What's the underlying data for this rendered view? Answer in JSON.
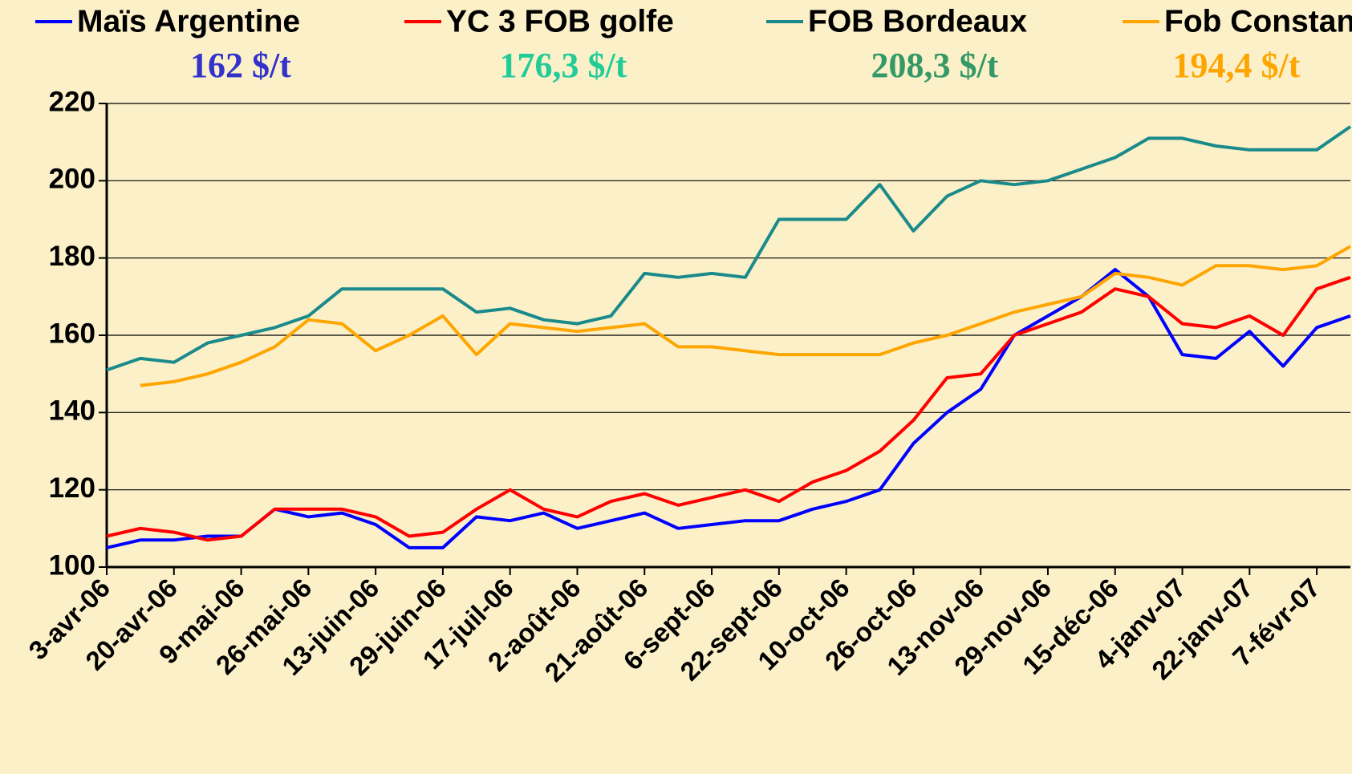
{
  "chart_data": {
    "type": "line",
    "categories": [
      "3-avr-06",
      null,
      "20-avr-06",
      null,
      "9-mai-06",
      null,
      "26-mai-06",
      null,
      "13-juin-06",
      null,
      "29-juin-06",
      null,
      "17-juil-06",
      null,
      "2-août-06",
      null,
      "21-août-06",
      null,
      "6-sept-06",
      null,
      "22-sept-06",
      null,
      "10-oct-06",
      null,
      "26-oct-06",
      null,
      "13-nov-06",
      null,
      "29-nov-06",
      null,
      "15-déc-06",
      null,
      "4-janv-07",
      null,
      "22-janv-07",
      null,
      "7-févr-07",
      null
    ],
    "series": [
      {
        "name": "Maïs Argentine",
        "color": "#0000ff",
        "values": [
          105,
          107,
          107,
          108,
          108,
          115,
          113,
          114,
          111,
          105,
          105,
          113,
          112,
          114,
          110,
          112,
          114,
          110,
          111,
          112,
          112,
          115,
          117,
          120,
          132,
          140,
          146,
          160,
          165,
          170,
          177,
          170,
          155,
          154,
          161,
          152,
          162,
          165
        ]
      },
      {
        "name": "YC 3 FOB golfe",
        "color": "#ff0000",
        "values": [
          108,
          110,
          109,
          107,
          108,
          115,
          115,
          115,
          113,
          108,
          109,
          115,
          120,
          115,
          113,
          117,
          119,
          116,
          118,
          120,
          117,
          122,
          125,
          130,
          138,
          149,
          150,
          160,
          163,
          166,
          172,
          170,
          163,
          162,
          165,
          160,
          172,
          175
        ]
      },
      {
        "name": "FOB Bordeaux",
        "color": "#1a8a8a",
        "values": [
          151,
          154,
          153,
          158,
          160,
          162,
          165,
          172,
          172,
          172,
          172,
          166,
          167,
          164,
          163,
          165,
          176,
          175,
          176,
          175,
          190,
          190,
          190,
          199,
          187,
          196,
          200,
          199,
          200,
          203,
          206,
          211,
          211,
          209,
          208,
          208,
          208,
          214
        ]
      },
      {
        "name": "Fob Constanza",
        "color": "#ffa500",
        "values": [
          null,
          147,
          148,
          150,
          153,
          157,
          164,
          163,
          156,
          160,
          165,
          155,
          163,
          162,
          161,
          162,
          163,
          157,
          157,
          156,
          155,
          155,
          155,
          155,
          158,
          160,
          163,
          166,
          168,
          170,
          176,
          175,
          173,
          178,
          178,
          177,
          178,
          183
        ]
      }
    ],
    "annotations": [
      {
        "text": "162 $/t",
        "color": "#3333cc"
      },
      {
        "text": "176,3 $/t",
        "color": "#22cc99"
      },
      {
        "text": "208,3 $/t",
        "color": "#339966"
      },
      {
        "text": "194,4 $/t",
        "color": "#ffa500"
      }
    ],
    "ylim": [
      100,
      220
    ],
    "yticks": [
      100,
      120,
      140,
      160,
      180,
      200,
      220
    ],
    "grid": true
  }
}
